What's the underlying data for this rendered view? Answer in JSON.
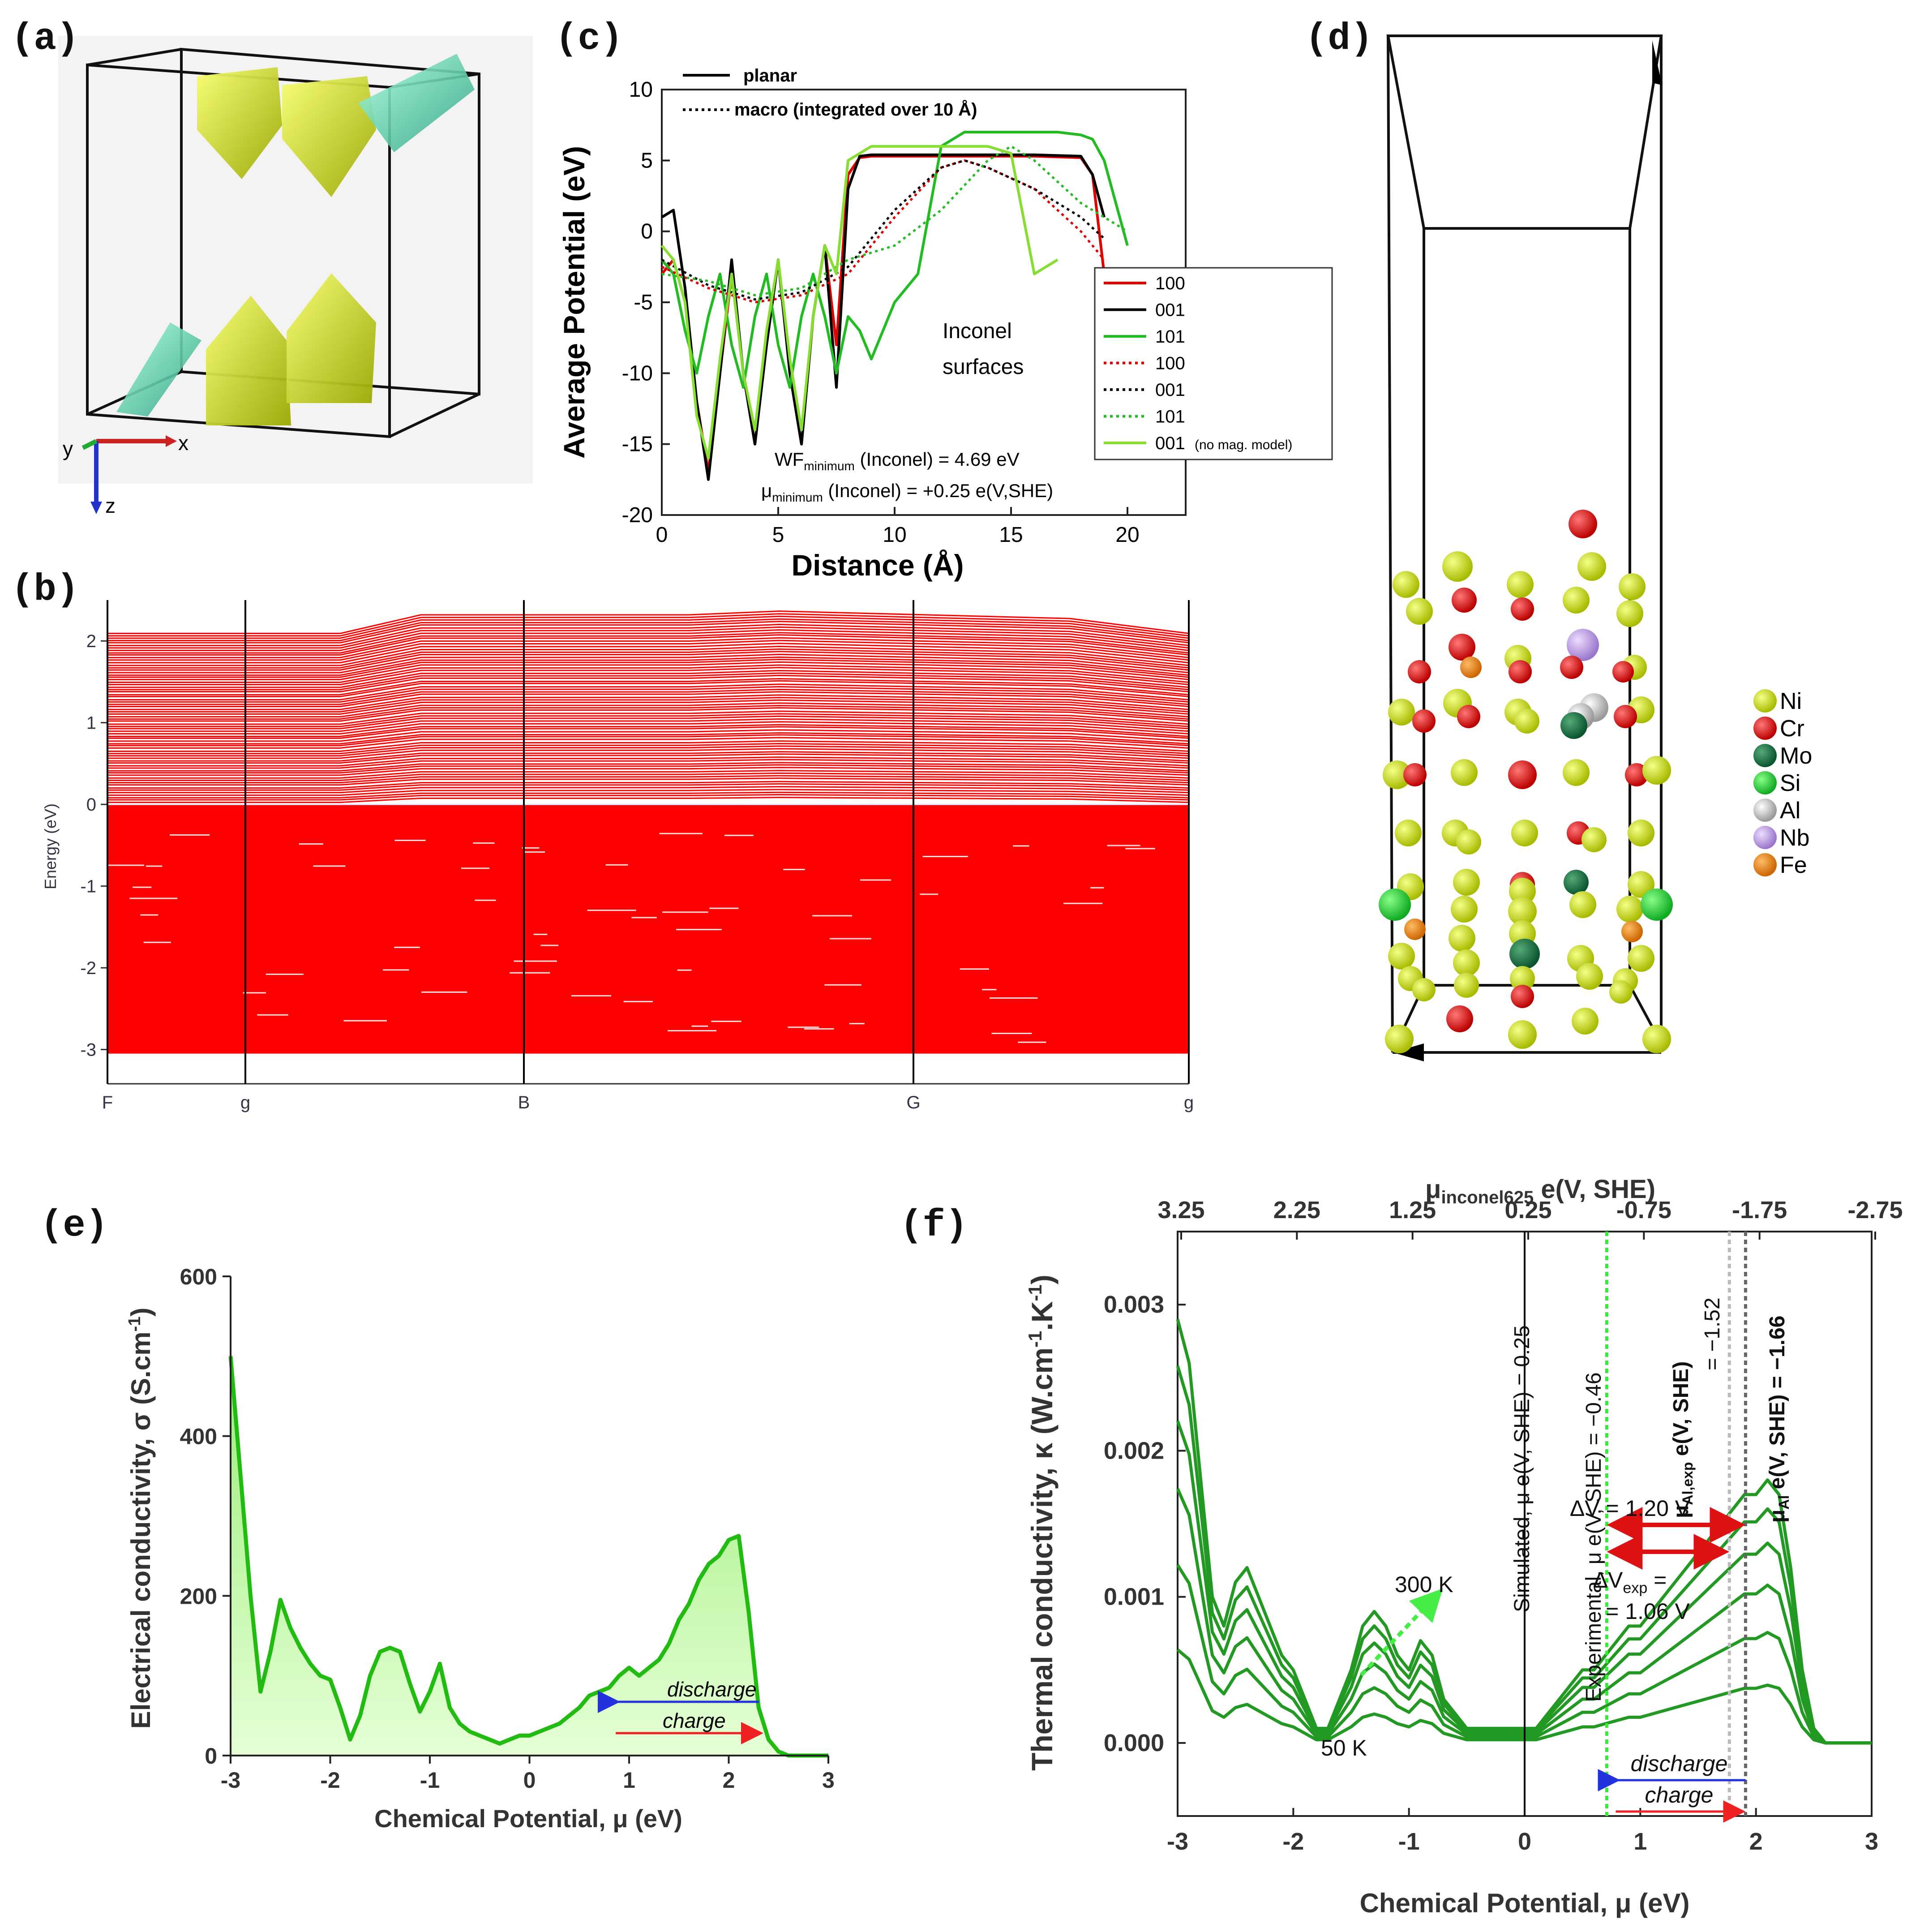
{
  "panels": {
    "a": "(a)",
    "b": "(b)",
    "c": "(c)",
    "d": "(d)",
    "e": "(e)",
    "f": "(f)"
  },
  "panel_a": {
    "axis_x": "x",
    "axis_y": "y",
    "axis_z": "z"
  },
  "chart_data": [
    {
      "id": "c",
      "type": "line",
      "xlabel": "Distance (Å)",
      "ylabel": "Average Potential (eV)",
      "xlim": [
        0,
        22.5
      ],
      "ylim": [
        -20,
        10
      ],
      "xticks": [
        "0",
        "5",
        "10",
        "15",
        "20"
      ],
      "yticks": [
        "10",
        "5",
        "0",
        "-5",
        "-10",
        "-15",
        "-20"
      ],
      "style_legend": [
        {
          "name": "planar",
          "style": "solid"
        },
        {
          "name": "macro (integrated over 10 Å)",
          "style": "dotted"
        }
      ],
      "legend": [
        {
          "name": "100",
          "color": "#e00000",
          "style": "solid"
        },
        {
          "name": "001",
          "color": "#000000",
          "style": "solid"
        },
        {
          "name": "101",
          "color": "#22bb22",
          "style": "solid"
        },
        {
          "name": "100",
          "color": "#e00000",
          "style": "dotted"
        },
        {
          "name": "001",
          "color": "#000000",
          "style": "dotted"
        },
        {
          "name": "101",
          "color": "#22bb22",
          "style": "dotted"
        },
        {
          "name": "001",
          "note": "(no mag. model)",
          "color": "#88dd33",
          "style": "solid"
        }
      ],
      "annotation_1": "Inconel",
      "annotation_2": "surfaces",
      "wf_text": "WF",
      "wf_sub": "minimum",
      "wf_rest": " (Inconel) = 4.69 eV",
      "mu_text": "μ",
      "mu_sub": "minimum",
      "mu_rest": " (Inconel) = +0.25 e(V,SHE)",
      "series": [
        {
          "name": "100 planar",
          "color": "#e00000",
          "style": "solid",
          "x": [
            0,
            0.5,
            1,
            1.5,
            2,
            2.5,
            3,
            3.5,
            4,
            4.5,
            5,
            5.5,
            6,
            6.5,
            7,
            7.5,
            8,
            8.5,
            9,
            10,
            12,
            14,
            16,
            18,
            18.5,
            19
          ],
          "y": [
            -3,
            -2,
            -5,
            -12,
            -17,
            -10,
            -3,
            -10,
            -15,
            -8,
            -2,
            -10,
            -15,
            -6,
            -1,
            -8,
            4,
            5.2,
            5.3,
            5.3,
            5.3,
            5.3,
            5.3,
            5.2,
            4,
            -3
          ]
        },
        {
          "name": "001 planar",
          "color": "#000000",
          "style": "solid",
          "x": [
            0,
            0.5,
            1,
            1.5,
            2,
            2.5,
            3,
            3.5,
            4,
            4.5,
            5,
            5.5,
            6,
            6.5,
            7,
            7.5,
            8,
            8.5,
            9,
            10,
            12,
            14,
            16,
            18,
            18.5,
            19
          ],
          "y": [
            1,
            1.5,
            -4,
            -12,
            -17.5,
            -10,
            -2,
            -10,
            -15,
            -8,
            -2,
            -10,
            -15,
            -6,
            -1,
            -11,
            3,
            5.3,
            5.4,
            5.4,
            5.4,
            5.4,
            5.4,
            5.3,
            4,
            1
          ]
        },
        {
          "name": "101 planar",
          "color": "#22bb22",
          "style": "solid",
          "x": [
            0,
            0.5,
            1,
            1.5,
            2,
            2.5,
            3,
            3.5,
            4,
            4.5,
            5,
            5.5,
            6,
            6.5,
            7,
            7.5,
            8,
            8.5,
            9,
            10,
            11,
            12,
            13,
            15,
            17,
            18,
            18.5,
            19,
            19.5,
            20
          ],
          "y": [
            -2,
            -3,
            -7,
            -10,
            -6,
            -3,
            -8,
            -11,
            -6,
            -3,
            -8,
            -11,
            -6,
            -3,
            -6,
            -10,
            -6,
            -7,
            -9,
            -5,
            -3,
            6,
            7,
            7,
            7,
            6.8,
            6.5,
            5,
            2,
            -1
          ]
        },
        {
          "name": "100 macro",
          "color": "#e00000",
          "style": "dotted",
          "x": [
            0,
            2,
            4,
            6,
            8,
            10,
            12,
            13,
            14,
            16,
            18,
            19
          ],
          "y": [
            -2.5,
            -4,
            -5,
            -4.5,
            -3,
            1,
            4.5,
            5,
            4.5,
            3,
            0,
            -2
          ]
        },
        {
          "name": "001 macro",
          "color": "#000000",
          "style": "dotted",
          "x": [
            0,
            2,
            4,
            6,
            8,
            10,
            12,
            13,
            14,
            16,
            18,
            19
          ],
          "y": [
            -2,
            -3.8,
            -4.8,
            -4.3,
            -2.5,
            1.5,
            4.5,
            5,
            4.5,
            3,
            1,
            -0.5
          ]
        },
        {
          "name": "101 macro",
          "color": "#22bb22",
          "style": "dotted",
          "x": [
            0,
            2,
            4,
            6,
            8,
            10,
            12,
            14,
            15,
            16,
            18,
            20
          ],
          "y": [
            -3,
            -3.5,
            -4.5,
            -4,
            -2,
            -1,
            1.5,
            5,
            6,
            5,
            2,
            0
          ]
        },
        {
          "name": "001 no mag",
          "color": "#88dd33",
          "style": "solid",
          "x": [
            0,
            0.5,
            1,
            1.5,
            2,
            2.5,
            3,
            3.5,
            4,
            4.5,
            5,
            5.5,
            6,
            6.5,
            7,
            7.5,
            8,
            9,
            10,
            11,
            12,
            13,
            14,
            15,
            16,
            17
          ],
          "y": [
            -1,
            -2,
            -5,
            -13,
            -16,
            -9,
            -3,
            -10,
            -14,
            -7,
            -2,
            -9,
            -14,
            -6,
            -1,
            -3,
            5,
            6,
            6,
            6,
            6,
            6,
            6,
            5.5,
            -3,
            -2
          ]
        }
      ]
    },
    {
      "id": "b",
      "type": "band-structure",
      "ylabel": "Energy (eV)",
      "ylim": [
        -3.2,
        2.5
      ],
      "yticks": [
        "2",
        "1",
        "0",
        "-1",
        "-2",
        "-3"
      ],
      "kpoints": [
        "F",
        "g",
        "B",
        "G",
        "g"
      ],
      "band_color": "#ff0000"
    },
    {
      "id": "e",
      "type": "area",
      "xlabel": "Chemical Potential, μ (eV)",
      "ylabel": "Electrical conductivity, σ (S.cm",
      "ylabel_sup": "-1",
      "ylabel_end": ")",
      "xlim": [
        -3,
        3
      ],
      "ylim": [
        0,
        600
      ],
      "xticks": [
        "-3",
        "-2",
        "-1",
        "0",
        "1",
        "2",
        "3"
      ],
      "yticks": [
        "0",
        "200",
        "400",
        "600"
      ],
      "discharge": "discharge",
      "charge": "charge",
      "x": [
        -3.0,
        -2.9,
        -2.8,
        -2.7,
        -2.6,
        -2.5,
        -2.4,
        -2.3,
        -2.2,
        -2.1,
        -2.0,
        -1.9,
        -1.8,
        -1.7,
        -1.6,
        -1.5,
        -1.4,
        -1.3,
        -1.2,
        -1.1,
        -1.0,
        -0.9,
        -0.8,
        -0.7,
        -0.6,
        -0.5,
        -0.4,
        -0.3,
        -0.2,
        -0.1,
        0.0,
        0.1,
        0.2,
        0.3,
        0.4,
        0.5,
        0.6,
        0.7,
        0.8,
        0.9,
        1.0,
        1.1,
        1.2,
        1.3,
        1.4,
        1.5,
        1.6,
        1.7,
        1.8,
        1.9,
        2.0,
        2.1,
        2.2,
        2.3,
        2.4,
        2.5,
        2.6,
        2.7,
        2.8,
        3.0
      ],
      "y": [
        500,
        350,
        200,
        80,
        130,
        195,
        160,
        135,
        115,
        100,
        95,
        60,
        20,
        50,
        100,
        130,
        135,
        130,
        90,
        55,
        80,
        115,
        60,
        40,
        30,
        25,
        20,
        15,
        20,
        25,
        25,
        30,
        35,
        40,
        50,
        60,
        75,
        80,
        85,
        100,
        110,
        100,
        110,
        120,
        140,
        170,
        190,
        220,
        240,
        250,
        270,
        275,
        180,
        60,
        20,
        5,
        0,
        0,
        0,
        0
      ]
    },
    {
      "id": "f",
      "type": "line",
      "xlabel": "Chemical Potential, μ (eV)",
      "ylabel": "Thermal conductivity, κ (W.cm",
      "ylabel_sup": "-1",
      "ylabel_mid": ".K",
      "ylabel_sup2": "-1",
      "ylabel_end": ")",
      "top_axis_label": "μ",
      "top_axis_sub": "inconel625",
      "top_axis_rest": " e(V, SHE)",
      "top_ticks": [
        "3.25",
        "2.25",
        "1.25",
        "0.25",
        "-0.75",
        "-1.75",
        "-2.75"
      ],
      "xlim": [
        -3,
        3
      ],
      "ylim": [
        -0.0005,
        0.0035
      ],
      "xticks": [
        "-3",
        "-2",
        "-1",
        "0",
        "1",
        "2",
        "3"
      ],
      "yticks": [
        "0.000",
        "0.001",
        "0.002",
        "0.003"
      ],
      "label_300K": "300 K",
      "label_50K": "50 K",
      "sim_label": "Simulated, μ e(V, SHE) = 0.25",
      "exp_label": "Experimental, μ e(V, SHE) = −0.46",
      "al_exp_label_1": "μ",
      "al_exp_sub": "Al,exp",
      "al_exp_label_2": " e(V, SHE)",
      "al_exp_value": "= −1.52",
      "al_label": "μ",
      "al_sub": "Al",
      "al_label_rest": " e(V, SHE) = −1.66",
      "dv_label": "ΔV = 1.20 V",
      "dvexp_label_1": "ΔV",
      "dvexp_sub": "exp",
      "dvexp_label_2": " =",
      "dvexp_value": "= 1.06 V",
      "discharge": "discharge",
      "charge": "charge",
      "x": [
        -3.0,
        -2.9,
        -2.8,
        -2.7,
        -2.6,
        -2.5,
        -2.4,
        -2.3,
        -2.2,
        -2.1,
        -2.0,
        -1.9,
        -1.8,
        -1.7,
        -1.6,
        -1.5,
        -1.4,
        -1.3,
        -1.2,
        -1.1,
        -1.0,
        -0.9,
        -0.8,
        -0.7,
        -0.6,
        -0.5,
        -0.4,
        -0.3,
        -0.2,
        -0.1,
        0.0,
        0.1,
        0.2,
        0.3,
        0.4,
        0.5,
        0.6,
        0.7,
        0.8,
        0.9,
        1.0,
        1.1,
        1.2,
        1.3,
        1.4,
        1.5,
        1.6,
        1.7,
        1.8,
        1.9,
        2.0,
        2.1,
        2.2,
        2.3,
        2.4,
        2.5,
        2.6,
        2.7,
        3.0
      ],
      "base_300K": [
        0.0029,
        0.0026,
        0.0018,
        0.001,
        0.0008,
        0.0011,
        0.0012,
        0.001,
        0.0008,
        0.0006,
        0.0005,
        0.0003,
        0.0001,
        0.0001,
        0.0003,
        0.0005,
        0.0008,
        0.0009,
        0.0008,
        0.0006,
        0.0005,
        0.0007,
        0.0006,
        0.0003,
        0.0002,
        0.0001,
        0.0001,
        0.0001,
        0.0001,
        0.0001,
        0.0001,
        0.0001,
        0.0002,
        0.0003,
        0.0004,
        0.0005,
        0.0005,
        0.0006,
        0.0007,
        0.0008,
        0.0008,
        0.0009,
        0.001,
        0.0011,
        0.0012,
        0.0013,
        0.0014,
        0.0015,
        0.0016,
        0.0017,
        0.0017,
        0.0018,
        0.0017,
        0.0012,
        0.0005,
        0.0001,
        0.0,
        0.0,
        0.0
      ],
      "scales": [
        1.0,
        0.89,
        0.76,
        0.6,
        0.42,
        0.22
      ]
    }
  ],
  "panel_d": {
    "legend": [
      {
        "name": "Ni",
        "color": "#ccdd00"
      },
      {
        "name": "Cr",
        "color": "#dd1111"
      },
      {
        "name": "Mo",
        "color": "#117744"
      },
      {
        "name": "Si",
        "color": "#22cc33"
      },
      {
        "name": "Al",
        "color": "#bbbbbb"
      },
      {
        "name": "Nb",
        "color": "#bb99dd"
      },
      {
        "name": "Fe",
        "color": "#ee8811"
      }
    ]
  }
}
